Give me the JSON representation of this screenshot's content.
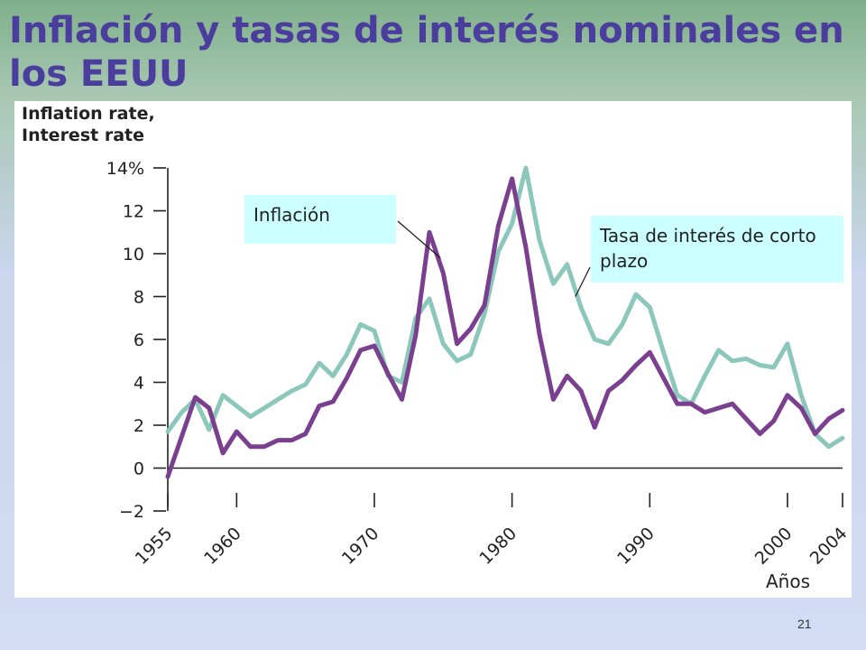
{
  "slide": {
    "title": "Inflación y tasas de interés nominales en los EEUU",
    "page_number": "21"
  },
  "colors": {
    "title": "#4b3d9e",
    "inflation_line": "#7b3f8f",
    "interest_line": "#8cc7bb",
    "annotation_bg": "#ccffff"
  },
  "chart_data": {
    "type": "line",
    "ylabel_lines": [
      "Inflation rate,",
      "Interest rate"
    ],
    "xlabel": "Años",
    "ylim": [
      -2,
      14
    ],
    "xlim": [
      1955,
      2004
    ],
    "yticks": [
      {
        "value": 14,
        "label": "14%"
      },
      {
        "value": 12,
        "label": "12"
      },
      {
        "value": 10,
        "label": "10"
      },
      {
        "value": 8,
        "label": "8"
      },
      {
        "value": 6,
        "label": "6"
      },
      {
        "value": 4,
        "label": "4"
      },
      {
        "value": 2,
        "label": "2"
      },
      {
        "value": 0,
        "label": "0"
      },
      {
        "value": -2,
        "label": "−2"
      }
    ],
    "xticks": [
      {
        "value": 1955,
        "label": "1955"
      },
      {
        "value": 1960,
        "label": "1960"
      },
      {
        "value": 1970,
        "label": "1970"
      },
      {
        "value": 1980,
        "label": "1980"
      },
      {
        "value": 1990,
        "label": "1990"
      },
      {
        "value": 2000,
        "label": "2000"
      },
      {
        "value": 2004,
        "label": "2004"
      }
    ],
    "annotations": [
      {
        "text": "Inflación",
        "series": 0,
        "x": 1974.8,
        "y": 9.8
      },
      {
        "text": "Tasa de interés de corto plazo",
        "series": 1,
        "x": 1984.6,
        "y": 8.0
      }
    ],
    "series": [
      {
        "id": "inflation",
        "x": [
          1955,
          1957,
          1958,
          1959,
          1960,
          1961,
          1962,
          1963,
          1964,
          1965,
          1966,
          1967,
          1968,
          1969,
          1970,
          1971,
          1972,
          1973,
          1974,
          1975,
          1976,
          1977,
          1978,
          1979,
          1980,
          1981,
          1982,
          1983,
          1984,
          1985,
          1986,
          1987,
          1988,
          1989,
          1990,
          1991,
          1992,
          1993,
          1994,
          1995,
          1996,
          1997,
          1998,
          1999,
          2000,
          2001,
          2002,
          2003,
          2004
        ],
        "y": [
          -0.4,
          3.3,
          2.8,
          0.7,
          1.7,
          1.0,
          1.0,
          1.3,
          1.3,
          1.6,
          2.9,
          3.1,
          4.2,
          5.5,
          5.7,
          4.4,
          3.2,
          6.2,
          11.0,
          9.1,
          5.8,
          6.5,
          7.6,
          11.3,
          13.5,
          10.3,
          6.2,
          3.2,
          4.3,
          3.6,
          1.9,
          3.6,
          4.1,
          4.8,
          5.4,
          4.2,
          3.0,
          3.0,
          2.6,
          2.8,
          3.0,
          2.3,
          1.6,
          2.2,
          3.4,
          2.8,
          1.6,
          2.3,
          2.7
        ]
      },
      {
        "id": "interest",
        "x": [
          1955,
          1956,
          1957,
          1958,
          1959,
          1960,
          1961,
          1962,
          1963,
          1964,
          1965,
          1966,
          1967,
          1968,
          1969,
          1970,
          1971,
          1972,
          1973,
          1974,
          1975,
          1976,
          1977,
          1978,
          1979,
          1980,
          1981,
          1982,
          1983,
          1984,
          1985,
          1986,
          1987,
          1988,
          1989,
          1990,
          1991,
          1992,
          1993,
          1994,
          1995,
          1996,
          1997,
          1998,
          1999,
          2000,
          2001,
          2002,
          2003,
          2004
        ],
        "y": [
          1.7,
          2.6,
          3.2,
          1.8,
          3.4,
          2.9,
          2.4,
          2.8,
          3.2,
          3.6,
          3.9,
          4.9,
          4.3,
          5.3,
          6.7,
          6.4,
          4.3,
          4.0,
          7.0,
          7.9,
          5.8,
          5.0,
          5.3,
          7.2,
          10.1,
          11.4,
          14.0,
          10.6,
          8.6,
          9.5,
          7.5,
          6.0,
          5.8,
          6.7,
          8.1,
          7.5,
          5.4,
          3.4,
          3.0,
          4.3,
          5.5,
          5.0,
          5.1,
          4.8,
          4.7,
          5.8,
          3.4,
          1.6,
          1.0,
          1.4
        ]
      }
    ]
  }
}
